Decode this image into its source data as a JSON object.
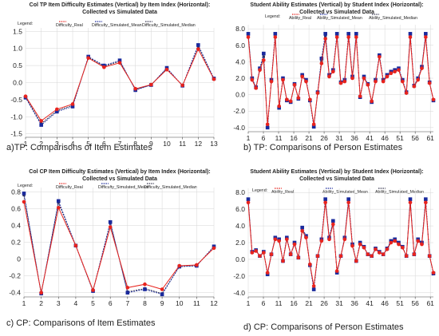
{
  "chart_data": [
    {
      "type": "line",
      "title_line1": "Col TP Item Difficulty Estimates (Vertical) by Item Index (Horizontal):",
      "title_line2": "Collected vs Simulated Data",
      "legend_label": "Legend:",
      "caption": "a)TP: Comparisons of Item Estimates",
      "x_ticks": [
        "1",
        "2",
        "3",
        "4",
        "5",
        "6",
        "7",
        "8",
        "9",
        "10",
        "11",
        "12",
        "13"
      ],
      "y_ticks": [
        "1.5",
        "1.0",
        "0.5",
        "0.0",
        "-0.5",
        "-1.0",
        "-1.5"
      ],
      "x": [
        1,
        2,
        3,
        4,
        5,
        6,
        7,
        8,
        9,
        10,
        11,
        12,
        13
      ],
      "xlim": [
        1,
        13
      ],
      "ylim": [
        -1.6,
        1.6
      ],
      "series": [
        {
          "name": "Difficulty_Real",
          "color": "#e8231d",
          "values": [
            -0.4,
            -1.12,
            -0.78,
            -0.63,
            0.72,
            0.45,
            0.58,
            -0.18,
            -0.06,
            0.38,
            -0.08,
            0.98,
            0.1
          ]
        },
        {
          "name": "Difficulty_Simulated_Mean",
          "color": "#1a2a9c",
          "values": [
            -0.44,
            -1.24,
            -0.85,
            -0.7,
            0.76,
            0.5,
            0.65,
            -0.22,
            -0.07,
            0.43,
            -0.09,
            1.1,
            0.12
          ]
        },
        {
          "name": "Difficulty_Simulated_Median",
          "color": "#33334d",
          "values": [
            -0.42,
            -1.2,
            -0.82,
            -0.67,
            0.74,
            0.48,
            0.62,
            -0.2,
            -0.07,
            0.41,
            -0.09,
            1.06,
            0.11
          ]
        }
      ]
    },
    {
      "type": "line",
      "title_line1": "Student Ability Estimates (Vertical) by Student Index (Horizontal):",
      "title_line2": "Collected vs Simulated Data",
      "legend_label": "Legend:",
      "caption": "b) TP: Comparisons of Person Estimates",
      "x_ticks": [
        "1",
        "6",
        "11",
        "16",
        "21",
        "26",
        "31",
        "36",
        "41",
        "46",
        "51",
        "56",
        "61"
      ],
      "y_ticks": [
        "8.0",
        "6.0",
        "4.0",
        "2.0",
        "0.0",
        "-2.0",
        "-4.0"
      ],
      "xlim": [
        1,
        62
      ],
      "ylim": [
        -4.5,
        8.5
      ],
      "series": [
        {
          "name": "Ability_Real",
          "color": "#e8231d",
          "values": [
            7.0,
            1.8,
            0.8,
            3.0,
            4.2,
            -3.6,
            1.6,
            7.0,
            -1.4,
            1.8,
            -0.6,
            -0.8,
            1.2,
            -0.4,
            2.2,
            1.6,
            -0.6,
            -3.6,
            0.2,
            3.8,
            6.8,
            2.2,
            2.8,
            7.0,
            1.4,
            1.6,
            7.0,
            2.0,
            7.0,
            -0.2,
            2.0,
            1.2,
            -0.8,
            1.6,
            4.6,
            1.6,
            2.2,
            2.6,
            2.8,
            3.0,
            1.6,
            0.2,
            7.0,
            1.0,
            1.8,
            3.2,
            7.0,
            1.4,
            -0.6
          ]
        },
        {
          "name": "Ability_Simulated_Mean",
          "color": "#1a2a9c",
          "values": [
            7.4,
            2.0,
            0.9,
            3.2,
            5.0,
            -4.0,
            1.8,
            7.4,
            -1.6,
            2.0,
            -0.7,
            -0.9,
            1.3,
            -0.5,
            2.4,
            1.8,
            -0.7,
            -3.9,
            0.3,
            4.4,
            7.4,
            2.4,
            3.0,
            7.4,
            1.5,
            1.8,
            7.4,
            2.2,
            7.4,
            -0.3,
            2.2,
            1.3,
            -0.9,
            1.8,
            4.8,
            1.8,
            2.4,
            2.8,
            3.0,
            3.2,
            1.8,
            0.3,
            7.4,
            1.1,
            2.0,
            3.4,
            7.4,
            1.5,
            -0.7
          ]
        },
        {
          "name": "Ability_Simulated_Median",
          "color": "#33334d",
          "values": [
            7.2,
            1.9,
            0.85,
            3.1,
            4.6,
            -3.8,
            1.7,
            7.2,
            -1.5,
            1.9,
            -0.65,
            -0.85,
            1.25,
            -0.45,
            2.3,
            1.7,
            -0.65,
            -3.8,
            0.25,
            4.1,
            7.1,
            2.3,
            2.9,
            7.2,
            1.45,
            1.7,
            7.2,
            2.1,
            7.2,
            -0.25,
            2.1,
            1.25,
            -0.85,
            1.7,
            4.7,
            1.7,
            2.3,
            2.7,
            2.9,
            3.1,
            1.7,
            0.25,
            7.2,
            1.05,
            1.9,
            3.3,
            7.2,
            1.45,
            -0.65
          ]
        }
      ]
    },
    {
      "type": "line",
      "title_line1": "Col CP Item Difficulty Estimates (Vertical) by Item Index (Horizontal):",
      "title_line2": "Collected vs Simulated Data",
      "legend_label": "Legend:",
      "caption": "c) CP: Comparisons of Item Estimates",
      "x_ticks": [
        "1",
        "2",
        "3",
        "4",
        "5",
        "6",
        "7",
        "8",
        "9",
        "10",
        "11",
        "12"
      ],
      "y_ticks": [
        "0.8",
        "0.6",
        "0.4",
        "0.2",
        "0",
        "-0.2",
        "-0.4"
      ],
      "x": [
        1,
        2,
        3,
        4,
        5,
        6,
        7,
        8,
        9,
        10,
        11,
        12
      ],
      "xlim": [
        1,
        12
      ],
      "ylim": [
        -0.45,
        0.85
      ],
      "series": [
        {
          "name": "Difficulty_Real",
          "color": "#e8231d",
          "values": [
            0.68,
            -0.4,
            0.61,
            0.16,
            -0.37,
            0.38,
            -0.34,
            -0.3,
            -0.36,
            -0.08,
            -0.07,
            0.13
          ]
        },
        {
          "name": "Difficulty_Simulated_Mean",
          "color": "#1a2a9c",
          "values": [
            0.78,
            -0.41,
            0.69,
            0.16,
            -0.38,
            0.44,
            -0.4,
            -0.36,
            -0.42,
            -0.09,
            -0.08,
            0.15
          ]
        },
        {
          "name": "Difficulty_Simulated_Median",
          "color": "#33334d",
          "values": [
            0.76,
            -0.41,
            0.67,
            0.16,
            -0.38,
            0.43,
            -0.39,
            -0.35,
            -0.41,
            -0.09,
            -0.08,
            0.15
          ]
        }
      ]
    },
    {
      "type": "line",
      "title_line1": "Student Ability Estimates (Vertical) by Student Index (Horizontal):",
      "title_line2": "Collected vs Simulated Data",
      "legend_label": "Legend:",
      "caption": "d) CP: Comparisons of Person Estimates",
      "x_ticks": [
        "1",
        "6",
        "11",
        "16",
        "21",
        "26",
        "31",
        "36",
        "41",
        "46",
        "51",
        "56",
        "61"
      ],
      "y_ticks": [
        "8.0",
        "6.0",
        "4.0",
        "2.0",
        "0.0",
        "-2.0",
        "-4.0"
      ],
      "xlim": [
        1,
        62
      ],
      "ylim": [
        -4.5,
        8.5
      ],
      "series": [
        {
          "name": "Ability_Real",
          "color": "#e8231d",
          "values": [
            6.8,
            0.8,
            1.0,
            0.4,
            0.8,
            -1.6,
            0.6,
            2.4,
            2.2,
            -0.2,
            2.4,
            0.6,
            1.8,
            0.2,
            3.4,
            2.6,
            -0.6,
            -3.2,
            0.4,
            2.2,
            6.8,
            2.4,
            4.2,
            -1.4,
            0.4,
            2.4,
            6.8,
            1.6,
            -0.2,
            1.8,
            1.4,
            0.6,
            0.4,
            1.2,
            0.8,
            0.6,
            1.2,
            2.0,
            2.2,
            1.8,
            1.4,
            0.4,
            6.8,
            0.6,
            2.2,
            1.8,
            6.8,
            0.4,
            -1.6
          ]
        },
        {
          "name": "Ability_Simulated_Mean",
          "color": "#1a2a9c",
          "values": [
            7.2,
            0.9,
            1.1,
            0.4,
            0.9,
            -1.8,
            0.6,
            2.6,
            2.4,
            -0.2,
            2.6,
            0.6,
            2.0,
            0.2,
            3.8,
            2.8,
            -0.7,
            -3.6,
            0.4,
            2.4,
            7.2,
            2.6,
            4.6,
            -1.6,
            0.4,
            2.6,
            7.2,
            1.8,
            -0.2,
            2.0,
            1.5,
            0.6,
            0.4,
            1.3,
            0.9,
            0.6,
            1.3,
            2.2,
            2.4,
            2.0,
            1.5,
            0.4,
            7.2,
            0.6,
            2.4,
            2.0,
            7.2,
            0.4,
            -1.7
          ]
        },
        {
          "name": "Ability_Simulated_Median",
          "color": "#33334d",
          "values": [
            7.0,
            0.85,
            1.05,
            0.4,
            0.85,
            -1.7,
            0.6,
            2.5,
            2.3,
            -0.2,
            2.5,
            0.6,
            1.9,
            0.2,
            3.6,
            2.7,
            -0.65,
            -3.4,
            0.4,
            2.3,
            7.0,
            2.5,
            4.4,
            -1.5,
            0.4,
            2.5,
            7.0,
            1.7,
            -0.2,
            1.9,
            1.45,
            0.6,
            0.4,
            1.25,
            0.85,
            0.6,
            1.25,
            2.1,
            2.3,
            1.9,
            1.45,
            0.4,
            7.0,
            0.6,
            2.3,
            1.9,
            7.0,
            0.4,
            -1.65
          ]
        }
      ]
    }
  ]
}
